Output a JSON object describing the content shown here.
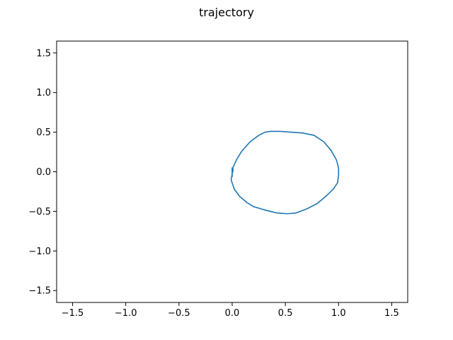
{
  "chart_data": {
    "type": "line",
    "title": "trajectory",
    "xlabel": "",
    "ylabel": "",
    "xlim": [
      -1.65,
      1.65
    ],
    "ylim": [
      -1.65,
      1.65
    ],
    "grid": false,
    "x_ticks": [
      -1.5,
      -1.0,
      -0.5,
      0.0,
      0.5,
      1.0,
      1.5
    ],
    "x_tick_labels": [
      "−1.5",
      "−1.0",
      "−0.5",
      "0.0",
      "0.5",
      "1.0",
      "1.5"
    ],
    "y_ticks": [
      -1.5,
      -1.0,
      -0.5,
      0.0,
      0.5,
      1.0,
      1.5
    ],
    "y_tick_labels": [
      "−1.5",
      "−1.0",
      "−0.5",
      "0.0",
      "0.5",
      "1.0",
      "1.5"
    ],
    "series": [
      {
        "color": "#1f77b4",
        "x": [
          0.0,
          0.0,
          0.01,
          0.0,
          0.0,
          0.01,
          0.04,
          0.09,
          0.17,
          0.25,
          0.31,
          0.36,
          0.45,
          0.55,
          0.66,
          0.77,
          0.86,
          0.93,
          0.98,
          1.0,
          1.0,
          0.99,
          0.95,
          0.88,
          0.8,
          0.7,
          0.6,
          0.52,
          0.42,
          0.3,
          0.2,
          0.14,
          0.07,
          0.02,
          -0.01,
          0.0
        ],
        "y": [
          -0.06,
          0.05,
          0.03,
          -0.03,
          0.02,
          0.06,
          0.15,
          0.26,
          0.38,
          0.46,
          0.5,
          0.51,
          0.51,
          0.5,
          0.49,
          0.46,
          0.38,
          0.27,
          0.15,
          0.05,
          -0.05,
          -0.14,
          -0.22,
          -0.31,
          -0.4,
          -0.47,
          -0.52,
          -0.53,
          -0.52,
          -0.48,
          -0.44,
          -0.39,
          -0.31,
          -0.22,
          -0.1,
          -0.03
        ]
      }
    ]
  }
}
